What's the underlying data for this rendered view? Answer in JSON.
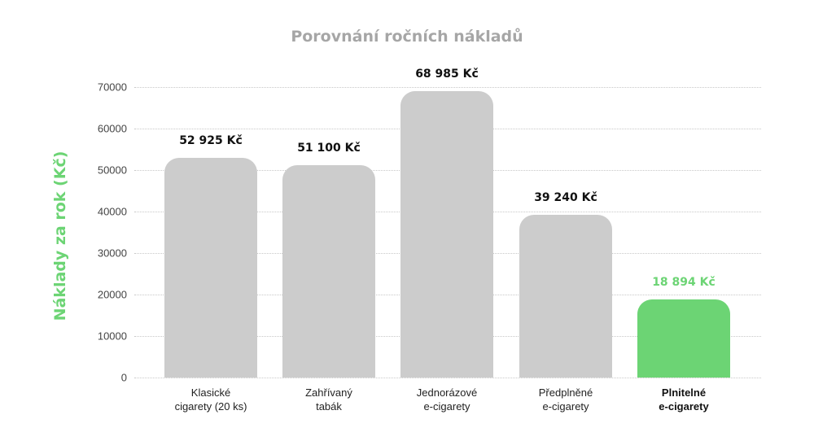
{
  "chart_data": {
    "type": "bar",
    "title": "Porovnání ročních nákladů",
    "xlabel": "",
    "ylabel": "Náklady za rok (Kč)",
    "ylim": [
      0,
      70000
    ],
    "yticks": [
      "0",
      "10000",
      "20000",
      "30000",
      "40000",
      "50000",
      "60000",
      "70000"
    ],
    "grid": true,
    "categories": [
      "Klasické cigarety (20 ks)",
      "Zahřívaný tabák",
      "Jednorázové e-cigarety",
      "Předplněné e-cigarety",
      "Plnitelné e-cigarety"
    ],
    "values": [
      52925,
      51100,
      68985,
      39240,
      18894
    ],
    "value_labels": [
      "52 925 Kč",
      "51 100 Kč",
      "68 985 Kč",
      "39 240 Kč",
      "18 894 Kč"
    ],
    "highlighted_index": 4,
    "colors": {
      "default_bar": "#cccccc",
      "highlight_bar": "#6cd474",
      "title": "#a6a6a6",
      "ylabel": "#6cd474"
    }
  },
  "cat_lines": [
    [
      "Klasické",
      "cigarety (20 ks)"
    ],
    [
      "Zahřívaný",
      "tabák"
    ],
    [
      "Jednorázové",
      "e-cigarety"
    ],
    [
      "Předplněné",
      "e-cigarety"
    ],
    [
      "Plnitelné",
      "e-cigarety"
    ]
  ]
}
